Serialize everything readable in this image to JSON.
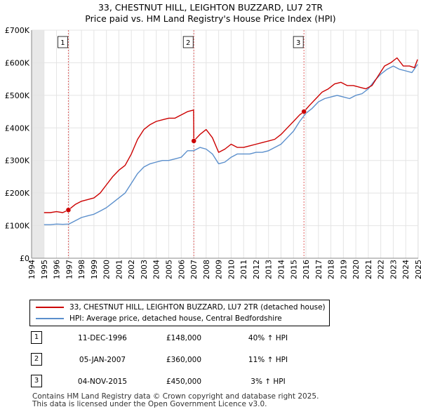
{
  "title_line1": "33, CHESTNUT HILL, LEIGHTON BUZZARD, LU7 2TR",
  "title_line2": "Price paid vs. HM Land Registry's House Price Index (HPI)",
  "legend": {
    "property": "33, CHESTNUT HILL, LEIGHTON BUZZARD, LU7 2TR (detached house)",
    "hpi": "HPI: Average price, detached house, Central Bedfordshire"
  },
  "colors": {
    "property": "#cc0000",
    "hpi": "#5b8fcc",
    "marker_line": "#e06060",
    "future_shade": "#e8e8e8"
  },
  "transactions": [
    {
      "num": "1",
      "date": "11-DEC-1996",
      "price": "£148,000",
      "hpi_delta": "40% ↑ HPI"
    },
    {
      "num": "2",
      "date": "05-JAN-2007",
      "price": "£360,000",
      "hpi_delta": "11% ↑ HPI"
    },
    {
      "num": "3",
      "date": "04-NOV-2015",
      "price": "£450,000",
      "hpi_delta": "3% ↑ HPI"
    }
  ],
  "footer": {
    "line1": "Contains HM Land Registry data © Crown copyright and database right 2025.",
    "line2": "This data is licensed under the Open Government Licence v3.0."
  },
  "chart_data": {
    "type": "line",
    "title": "33, CHESTNUT HILL, LEIGHTON BUZZARD, LU7 2TR",
    "subtitle": "Price paid vs. HM Land Registry's House Price Index (HPI)",
    "xlabel": "",
    "ylabel": "",
    "xlim": [
      1994,
      2025
    ],
    "ylim": [
      0,
      700000
    ],
    "x_ticks": [
      "1994",
      "1995",
      "1996",
      "1997",
      "1998",
      "1999",
      "2000",
      "2001",
      "2002",
      "2003",
      "2004",
      "2005",
      "2006",
      "2007",
      "2008",
      "2009",
      "2010",
      "2011",
      "2012",
      "2013",
      "2014",
      "2015",
      "2016",
      "2017",
      "2018",
      "2019",
      "2020",
      "2021",
      "2022",
      "2023",
      "2024",
      "2025"
    ],
    "y_ticks": [
      {
        "value": 0,
        "label": "£0"
      },
      {
        "value": 100000,
        "label": "£100K"
      },
      {
        "value": 200000,
        "label": "£200K"
      },
      {
        "value": 300000,
        "label": "£300K"
      },
      {
        "value": 400000,
        "label": "£400K"
      },
      {
        "value": 500000,
        "label": "£500K"
      },
      {
        "value": 600000,
        "label": "£600K"
      },
      {
        "value": 700000,
        "label": "£700K"
      }
    ],
    "data_start": 1995.0,
    "data_end": 2024.95,
    "sales": [
      {
        "label": "1",
        "x": 1996.95,
        "y": 148000
      },
      {
        "label": "2",
        "x": 2007.01,
        "y": 360000
      },
      {
        "label": "3",
        "x": 2015.84,
        "y": 450000
      }
    ],
    "series": [
      {
        "name": "33, CHESTNUT HILL, LEIGHTON BUZZARD, LU7 2TR (detached house)",
        "color": "#cc0000",
        "x": [
          1995.0,
          1995.5,
          1996.0,
          1996.5,
          1996.95,
          1997.5,
          1998.0,
          1998.5,
          1999.0,
          1999.5,
          2000.0,
          2000.5,
          2001.0,
          2001.5,
          2002.0,
          2002.5,
          2003.0,
          2003.5,
          2004.0,
          2004.5,
          2005.0,
          2005.5,
          2006.0,
          2006.5,
          2006.99,
          2007.01,
          2007.5,
          2008.0,
          2008.5,
          2009.0,
          2009.5,
          2010.0,
          2010.5,
          2011.0,
          2011.5,
          2012.0,
          2012.5,
          2013.0,
          2013.5,
          2014.0,
          2014.5,
          2015.0,
          2015.5,
          2015.84,
          2016.3,
          2016.8,
          2017.3,
          2017.8,
          2018.3,
          2018.8,
          2019.3,
          2019.8,
          2020.3,
          2020.8,
          2021.3,
          2021.8,
          2022.3,
          2022.8,
          2023.3,
          2023.8,
          2024.3,
          2024.7,
          2024.95
        ],
        "y": [
          140000,
          140000,
          143000,
          140000,
          148000,
          165000,
          175000,
          180000,
          185000,
          200000,
          225000,
          250000,
          270000,
          285000,
          320000,
          365000,
          395000,
          410000,
          420000,
          425000,
          430000,
          430000,
          440000,
          450000,
          455000,
          360000,
          380000,
          395000,
          370000,
          325000,
          335000,
          350000,
          340000,
          340000,
          345000,
          350000,
          355000,
          360000,
          365000,
          380000,
          400000,
          420000,
          440000,
          450000,
          470000,
          490000,
          510000,
          520000,
          535000,
          540000,
          530000,
          530000,
          525000,
          520000,
          530000,
          560000,
          590000,
          600000,
          615000,
          590000,
          590000,
          585000,
          610000
        ]
      },
      {
        "name": "HPI: Average price, detached house, Central Bedfordshire",
        "color": "#5b8fcc",
        "x": [
          1995.0,
          1995.5,
          1996.0,
          1996.5,
          1997.0,
          1997.5,
          1998.0,
          1998.5,
          1999.0,
          1999.5,
          2000.0,
          2000.5,
          2001.0,
          2001.5,
          2002.0,
          2002.5,
          2003.0,
          2003.5,
          2004.0,
          2004.5,
          2005.0,
          2005.5,
          2006.0,
          2006.5,
          2007.0,
          2007.5,
          2008.0,
          2008.5,
          2009.0,
          2009.5,
          2010.0,
          2010.5,
          2011.0,
          2011.5,
          2012.0,
          2012.5,
          2013.0,
          2013.5,
          2014.0,
          2014.5,
          2015.0,
          2015.5,
          2016.0,
          2016.5,
          2017.0,
          2017.5,
          2018.0,
          2018.5,
          2019.0,
          2019.5,
          2020.0,
          2020.5,
          2021.0,
          2021.5,
          2022.0,
          2022.5,
          2023.0,
          2023.5,
          2024.0,
          2024.5,
          2024.95
        ],
        "y": [
          103000,
          103000,
          105000,
          104000,
          105000,
          115000,
          125000,
          130000,
          135000,
          145000,
          155000,
          170000,
          185000,
          200000,
          230000,
          260000,
          280000,
          290000,
          295000,
          300000,
          300000,
          305000,
          310000,
          330000,
          330000,
          340000,
          335000,
          320000,
          290000,
          295000,
          310000,
          320000,
          320000,
          320000,
          325000,
          325000,
          330000,
          340000,
          350000,
          370000,
          390000,
          420000,
          445000,
          460000,
          480000,
          490000,
          495000,
          500000,
          495000,
          490000,
          500000,
          505000,
          520000,
          545000,
          565000,
          580000,
          590000,
          580000,
          575000,
          570000,
          595000
        ]
      }
    ]
  }
}
